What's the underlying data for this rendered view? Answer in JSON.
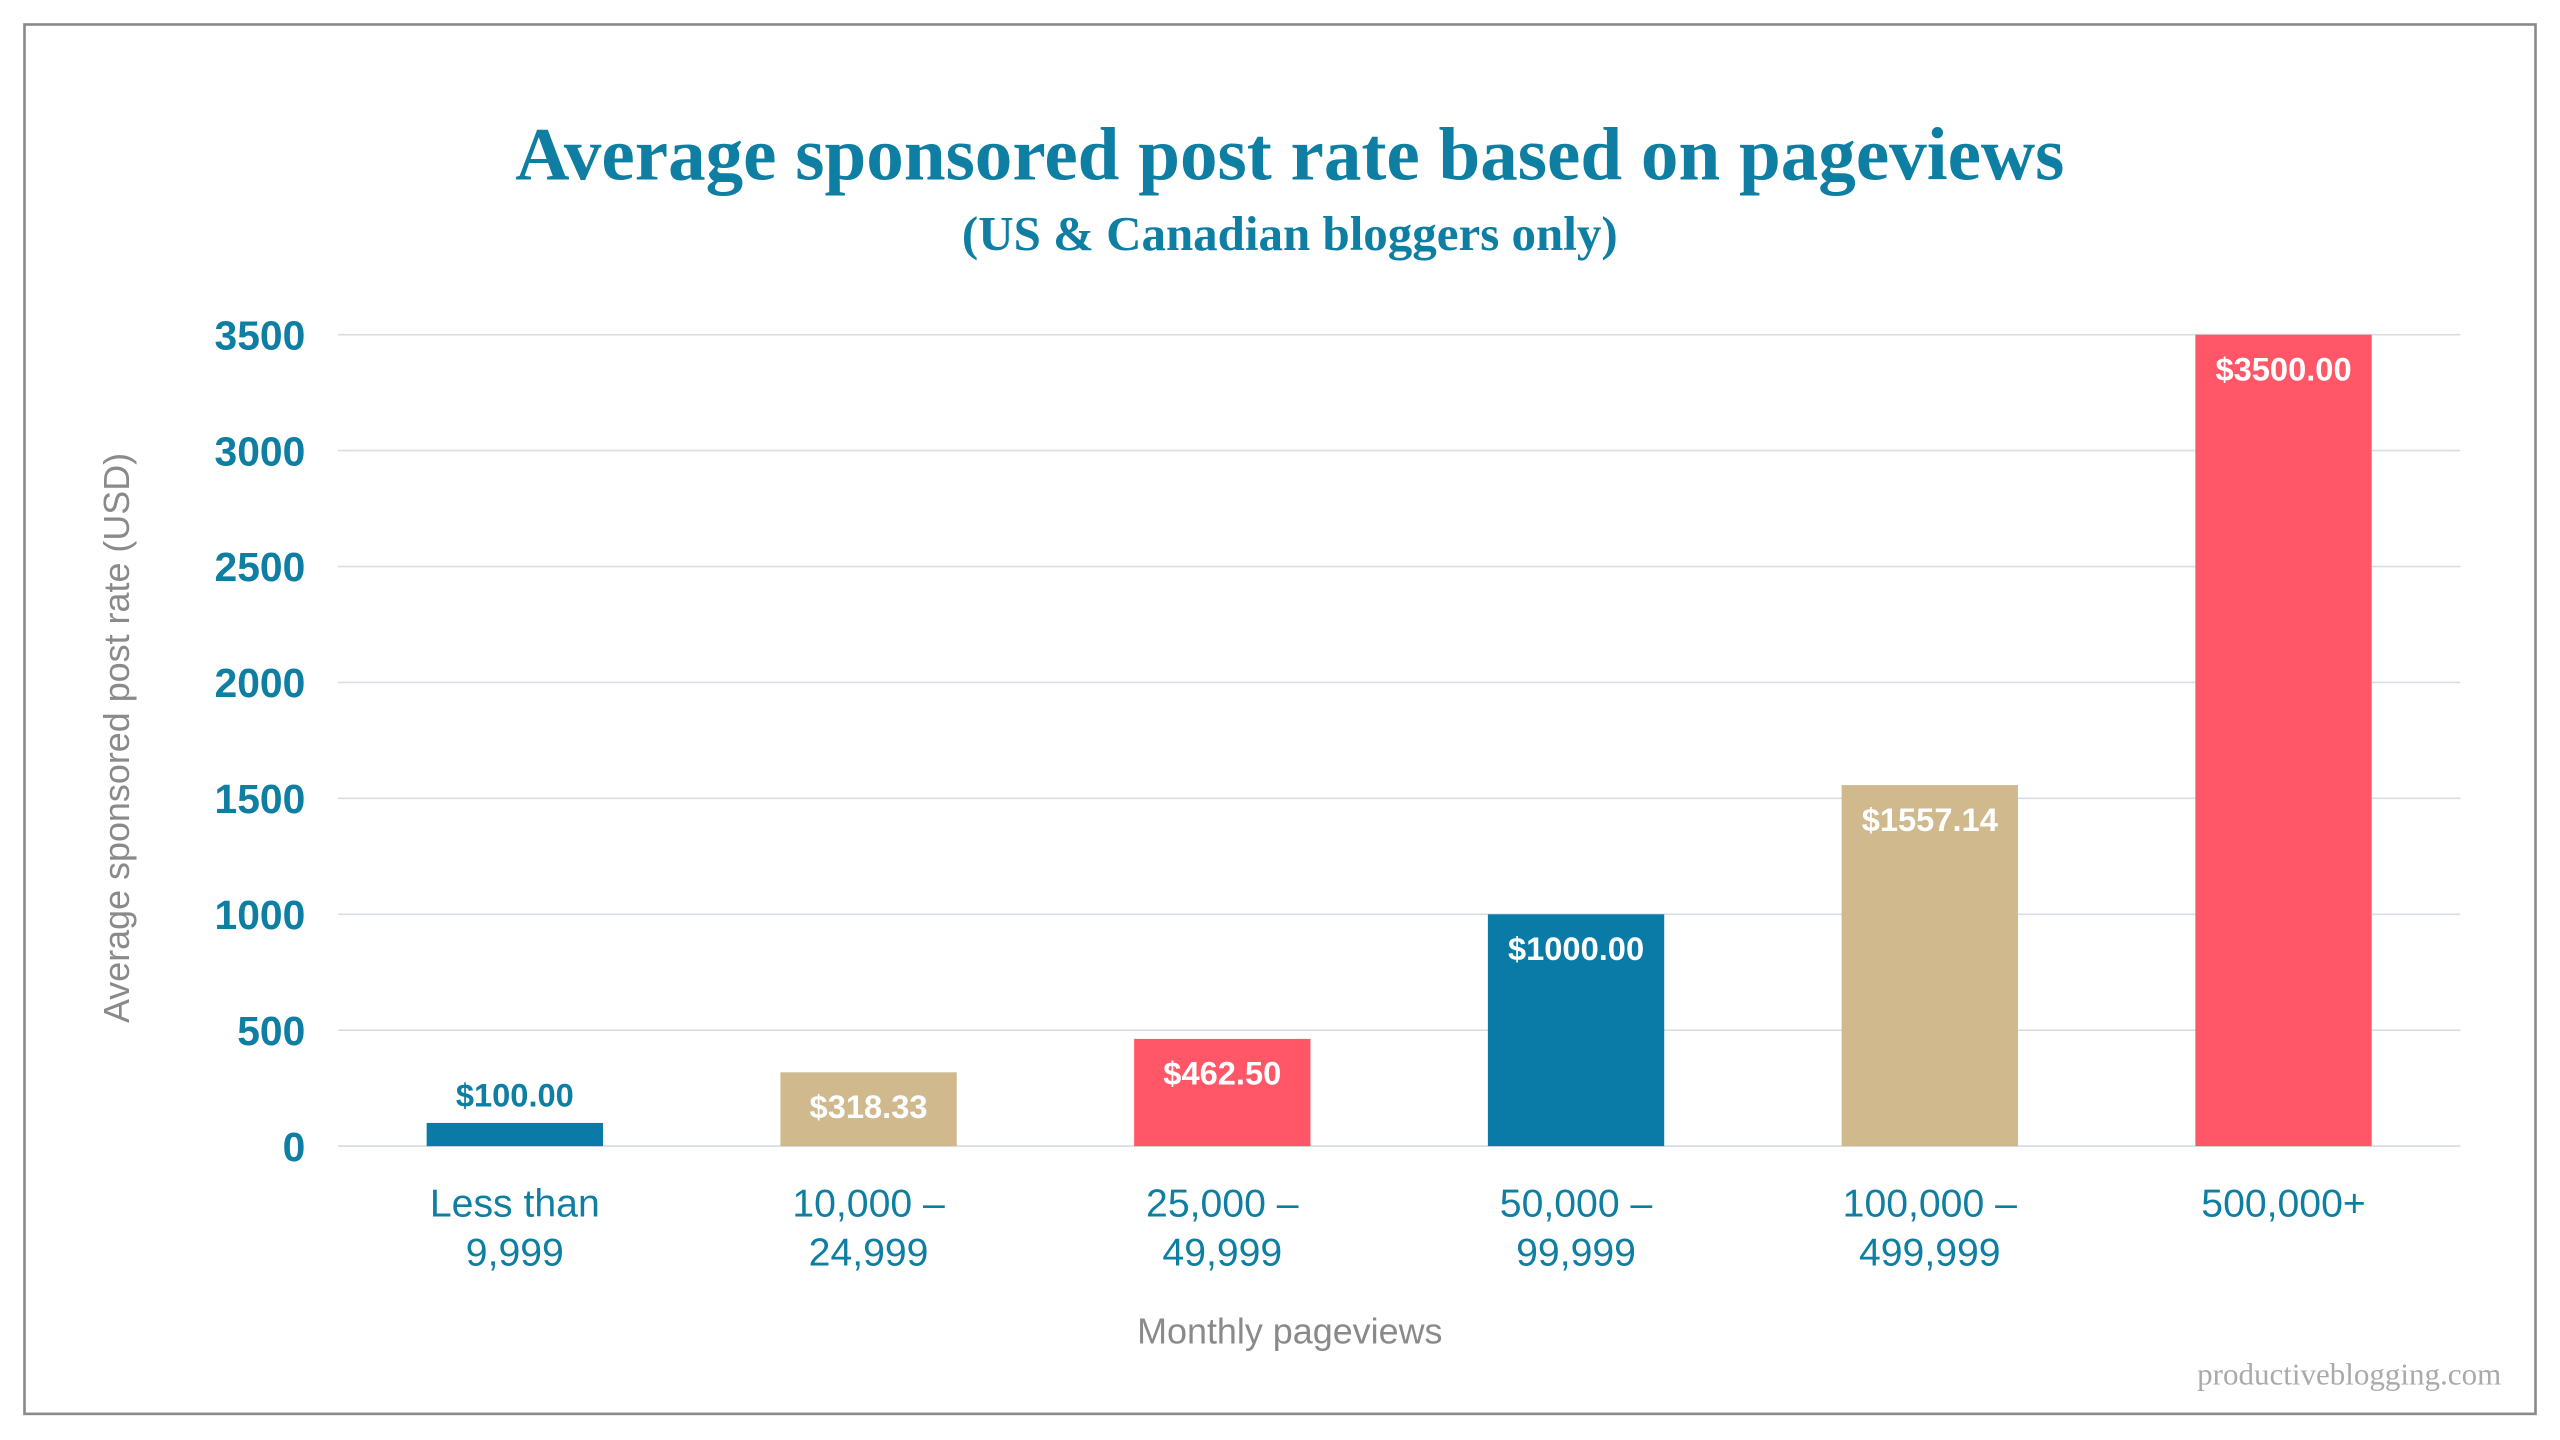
{
  "chart_data": {
    "type": "bar",
    "title": "Average sponsored post rate based on pageviews",
    "subtitle": "(US & Canadian bloggers only)",
    "xlabel": "Monthly pageviews",
    "ylabel": "Average sponsored post rate (USD)",
    "ylim": [
      0,
      3500
    ],
    "yticks": [
      0,
      500,
      1000,
      1500,
      2000,
      2500,
      3000,
      3500
    ],
    "grid": true,
    "categories": [
      [
        "Less than",
        "9,999"
      ],
      [
        "10,000 –",
        "24,999"
      ],
      [
        "25,000 –",
        "49,999"
      ],
      [
        "50,000 –",
        "99,999"
      ],
      [
        "100,000 –",
        "499,999"
      ],
      [
        "500,000+"
      ]
    ],
    "values": [
      100.0,
      318.33,
      462.5,
      1000.0,
      1557.14,
      3500.0
    ],
    "data_labels": [
      "$100.00",
      "$318.33",
      "$462.50",
      "$1000.00",
      "$1557.14",
      "$3500.00"
    ],
    "bar_colors": [
      "#0a7ba6",
      "#cfb98d",
      "#ff5767",
      "#0a7ba6",
      "#cfb98d",
      "#ff5767"
    ]
  },
  "colors": {
    "title": "#0e7ea3",
    "tick": "#0e7ea3",
    "axis_label": "#8a8a8a",
    "grid": "#d9dde3",
    "frame": "#8a8a8a",
    "watermark": "#aaaaaa"
  },
  "watermark": "productiveblogging.com"
}
